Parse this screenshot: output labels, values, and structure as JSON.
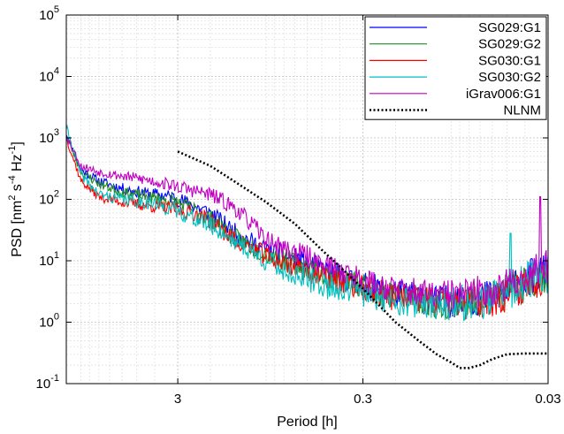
{
  "chart_data": {
    "type": "line",
    "title": "",
    "xlabel": "Period [h]",
    "ylabel": {
      "base": "PSD [nm",
      "sup1": "2",
      "mid1": " s",
      "sup2": "-4",
      "mid2": " Hz",
      "sup3": "-1",
      "end": "]"
    },
    "x_scale": "log-reversed",
    "y_scale": "log",
    "xlim_period_h": [
      12,
      0.03
    ],
    "ylim": [
      0.1,
      100000
    ],
    "grid": true,
    "legend_position": "top-right",
    "x_ticks": [
      {
        "value": 3,
        "label": "3"
      },
      {
        "value": 0.3,
        "label": "0.3"
      },
      {
        "value": 0.03,
        "label": "0.03"
      }
    ],
    "y_ticks": [
      {
        "value": 0.1,
        "base": "10",
        "exp": "-1"
      },
      {
        "value": 1,
        "base": "10",
        "exp": "0"
      },
      {
        "value": 10,
        "base": "10",
        "exp": "1"
      },
      {
        "value": 100,
        "base": "10",
        "exp": "2"
      },
      {
        "value": 1000,
        "base": "10",
        "exp": "3"
      },
      {
        "value": 10000,
        "base": "10",
        "exp": "4"
      },
      {
        "value": 100000,
        "base": "10",
        "exp": "5"
      }
    ],
    "series": [
      {
        "name": "SG029:G1",
        "color": "#0000ff",
        "style": "solid",
        "seed": 11,
        "noise": 0.12,
        "points": [
          [
            12,
            1200
          ],
          [
            10,
            300
          ],
          [
            8,
            200
          ],
          [
            6,
            150
          ],
          [
            4.5,
            125
          ],
          [
            3.2,
            110
          ],
          [
            2.5,
            80
          ],
          [
            2,
            60
          ],
          [
            1.5,
            30
          ],
          [
            1.2,
            20
          ],
          [
            1,
            15
          ],
          [
            0.8,
            12
          ],
          [
            0.6,
            9
          ],
          [
            0.5,
            7
          ],
          [
            0.4,
            5.5
          ],
          [
            0.3,
            4
          ],
          [
            0.25,
            3.5
          ],
          [
            0.2,
            3
          ],
          [
            0.15,
            2.5
          ],
          [
            0.12,
            2.2
          ],
          [
            0.1,
            2.2
          ],
          [
            0.08,
            2.3
          ],
          [
            0.06,
            2.6
          ],
          [
            0.05,
            3.2
          ],
          [
            0.04,
            4.5
          ],
          [
            0.035,
            6
          ],
          [
            0.03,
            7
          ]
        ]
      },
      {
        "name": "SG029:G2",
        "color": "#228b22",
        "style": "solid",
        "seed": 23,
        "noise": 0.12,
        "points": [
          [
            12,
            1100
          ],
          [
            10,
            280
          ],
          [
            8,
            180
          ],
          [
            6,
            130
          ],
          [
            4.5,
            110
          ],
          [
            3.2,
            95
          ],
          [
            2.5,
            70
          ],
          [
            2,
            50
          ],
          [
            1.5,
            25
          ],
          [
            1.2,
            17
          ],
          [
            1,
            13
          ],
          [
            0.8,
            10
          ],
          [
            0.6,
            8
          ],
          [
            0.5,
            6
          ],
          [
            0.4,
            5
          ],
          [
            0.3,
            3.8
          ],
          [
            0.25,
            3.2
          ],
          [
            0.2,
            2.8
          ],
          [
            0.15,
            2.4
          ],
          [
            0.12,
            2.1
          ],
          [
            0.1,
            2.1
          ],
          [
            0.08,
            2.2
          ],
          [
            0.06,
            2.5
          ],
          [
            0.05,
            3
          ],
          [
            0.04,
            4.3
          ],
          [
            0.035,
            5.5
          ],
          [
            0.03,
            6.5
          ]
        ]
      },
      {
        "name": "SG030:G1",
        "color": "#ff0000",
        "style": "solid",
        "seed": 37,
        "noise": 0.12,
        "points": [
          [
            12,
            1000
          ],
          [
            10,
            200
          ],
          [
            8,
            110
          ],
          [
            6,
            90
          ],
          [
            4.5,
            80
          ],
          [
            3.2,
            70
          ],
          [
            2.5,
            60
          ],
          [
            2,
            45
          ],
          [
            1.5,
            22
          ],
          [
            1.2,
            16
          ],
          [
            1,
            12
          ],
          [
            0.8,
            9
          ],
          [
            0.6,
            7
          ],
          [
            0.5,
            5.5
          ],
          [
            0.4,
            4.5
          ],
          [
            0.3,
            3.5
          ],
          [
            0.25,
            3
          ],
          [
            0.2,
            2.6
          ],
          [
            0.15,
            2.3
          ],
          [
            0.12,
            2
          ],
          [
            0.1,
            2
          ],
          [
            0.08,
            2.1
          ],
          [
            0.06,
            2.4
          ],
          [
            0.05,
            2.9
          ],
          [
            0.04,
            4
          ],
          [
            0.035,
            5
          ],
          [
            0.03,
            6
          ]
        ]
      },
      {
        "name": "SG030:G2",
        "color": "#00c0c0",
        "style": "solid",
        "seed": 41,
        "noise": 0.13,
        "points": [
          [
            12,
            1500
          ],
          [
            10,
            250
          ],
          [
            8,
            120
          ],
          [
            6,
            100
          ],
          [
            4.5,
            90
          ],
          [
            3.2,
            70
          ],
          [
            2.5,
            50
          ],
          [
            2,
            38
          ],
          [
            1.5,
            22
          ],
          [
            1.2,
            14
          ],
          [
            1,
            10
          ],
          [
            0.8,
            7
          ],
          [
            0.6,
            5
          ],
          [
            0.5,
            4
          ],
          [
            0.4,
            3.5
          ],
          [
            0.3,
            3
          ],
          [
            0.25,
            2.7
          ],
          [
            0.2,
            2.4
          ],
          [
            0.15,
            2.1
          ],
          [
            0.12,
            2
          ],
          [
            0.1,
            2
          ],
          [
            0.08,
            2.1
          ],
          [
            0.06,
            2.4
          ],
          [
            0.05,
            3
          ],
          [
            0.04,
            4.2
          ],
          [
            0.035,
            5.2
          ],
          [
            0.03,
            6
          ]
        ]
      },
      {
        "name": "iGrav006:G1",
        "color": "#c000c0",
        "style": "solid",
        "seed": 53,
        "noise": 0.11,
        "points": [
          [
            12,
            1100
          ],
          [
            10,
            350
          ],
          [
            8,
            280
          ],
          [
            6,
            240
          ],
          [
            4.5,
            210
          ],
          [
            3.2,
            170
          ],
          [
            2.5,
            140
          ],
          [
            2,
            120
          ],
          [
            1.5,
            75
          ],
          [
            1.2,
            40
          ],
          [
            1,
            22
          ],
          [
            0.8,
            16
          ],
          [
            0.6,
            12
          ],
          [
            0.5,
            9
          ],
          [
            0.4,
            7
          ],
          [
            0.3,
            5
          ],
          [
            0.25,
            4
          ],
          [
            0.2,
            3.5
          ],
          [
            0.15,
            3
          ],
          [
            0.12,
            2.8
          ],
          [
            0.1,
            2.8
          ],
          [
            0.08,
            3
          ],
          [
            0.06,
            3.3
          ],
          [
            0.05,
            4
          ],
          [
            0.04,
            5.5
          ],
          [
            0.035,
            7
          ],
          [
            0.03,
            8
          ]
        ]
      },
      {
        "name": "NLNM",
        "color": "#000000",
        "style": "dotted",
        "seed": 0,
        "noise": 0,
        "points": [
          [
            3,
            600
          ],
          [
            2,
            350
          ],
          [
            1.5,
            200
          ],
          [
            1,
            90
          ],
          [
            0.7,
            40
          ],
          [
            0.5,
            15
          ],
          [
            0.4,
            8
          ],
          [
            0.3,
            3.5
          ],
          [
            0.25,
            2
          ],
          [
            0.2,
            1
          ],
          [
            0.15,
            0.5
          ],
          [
            0.12,
            0.3
          ],
          [
            0.1,
            0.22
          ],
          [
            0.09,
            0.18
          ],
          [
            0.08,
            0.18
          ],
          [
            0.07,
            0.2
          ],
          [
            0.06,
            0.25
          ],
          [
            0.05,
            0.3
          ],
          [
            0.04,
            0.31
          ],
          [
            0.03,
            0.31
          ]
        ]
      }
    ],
    "spikes": [
      {
        "series": "SG030:G2",
        "period_h": 0.048,
        "value": 28
      },
      {
        "series": "iGrav006:G1",
        "period_h": 0.033,
        "value": 110
      }
    ]
  }
}
